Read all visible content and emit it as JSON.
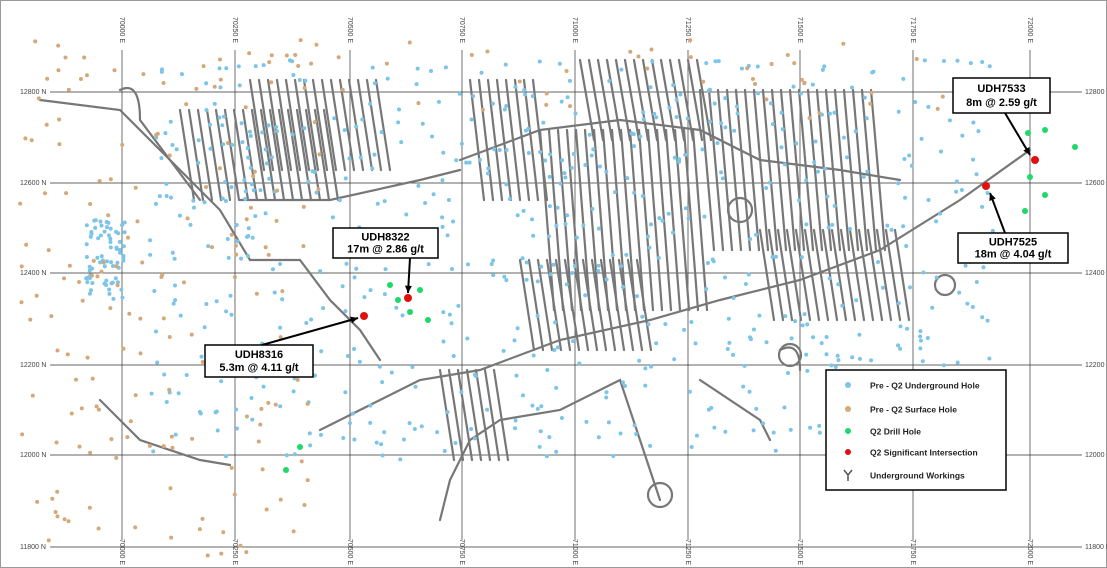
{
  "grid": {
    "northings": [
      "12800 N",
      "12600 N",
      "12400 N",
      "12200 N",
      "12000 N",
      "11800 N"
    ],
    "eastings": [
      "70000 E",
      "70250 E",
      "70500 E",
      "70750 E",
      "71000 E",
      "71250 E",
      "71500 E",
      "71750 E",
      "72000 E"
    ]
  },
  "callouts": [
    {
      "hole": "UDH7533",
      "intercept": "8m @ 2.59 g/t"
    },
    {
      "hole": "UDH7525",
      "intercept": "18m @ 4.04 g/t"
    },
    {
      "hole": "UDH8322",
      "intercept": "17m @ 2.86 g/t"
    },
    {
      "hole": "UDH8316",
      "intercept": "5.3m @ 4.11 g/t"
    }
  ],
  "legend": [
    "Pre - Q2 Underground Hole",
    "Pre - Q2 Surface Hole",
    "Q2 Drill Hole",
    "Q2 Significant Intersection",
    "Underground Workings"
  ]
}
